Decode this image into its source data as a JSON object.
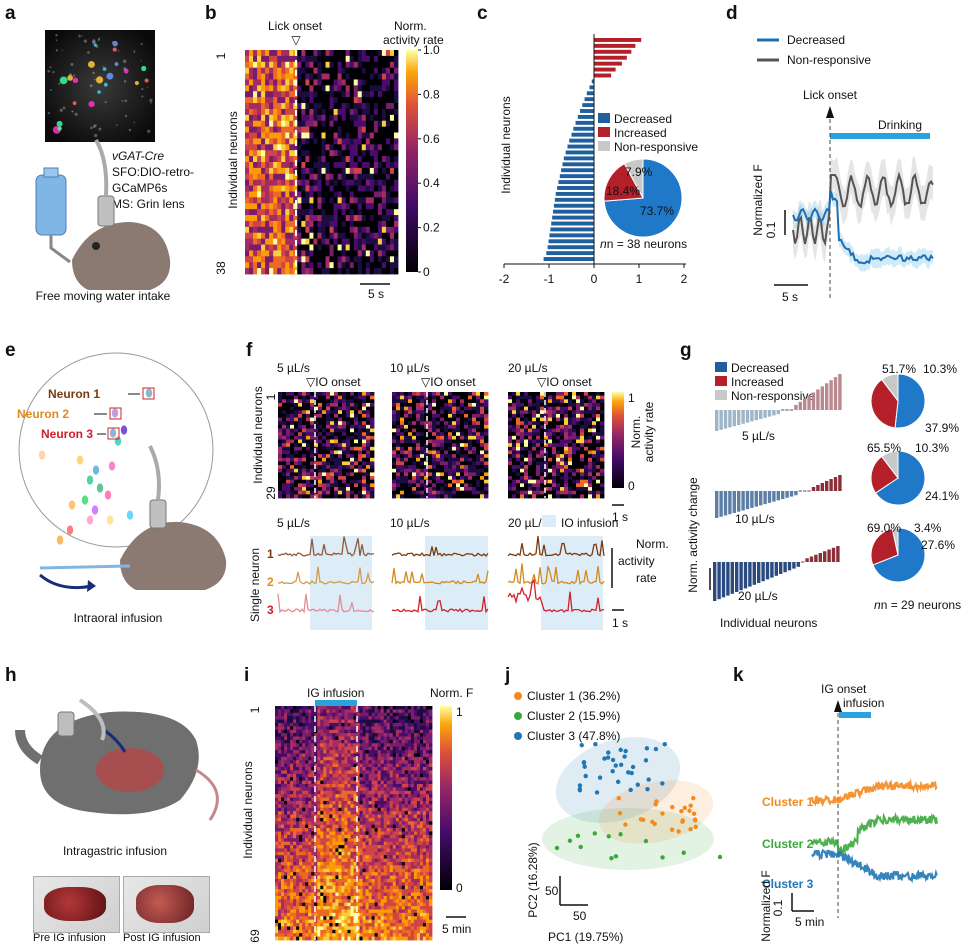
{
  "panel_letters": [
    "a",
    "b",
    "c",
    "d",
    "e",
    "f",
    "g",
    "h",
    "i",
    "j",
    "k"
  ],
  "a": {
    "genotype": "vGAT-Cre",
    "line2": "SFO:DIO-retro-",
    "line3": "GCaMP6s",
    "line4": "MS: Grin lens",
    "caption": "Free moving water intake"
  },
  "b": {
    "marker": "Lick onset",
    "cbar_title_1": "Norm.",
    "cbar_title_2": "activity rate",
    "cbar_ticks": [
      "1.0",
      "0.8",
      "0.6",
      "0.4",
      "0.2",
      "0"
    ],
    "ylabel": "Individual neurons",
    "row_first": "1",
    "row_last": "38",
    "scalebar": "5 s",
    "colors": {
      "low": "#0d0887",
      "mid": "#cc4778",
      "high": "#f0f921"
    }
  },
  "c": {
    "ylabel": "Individual neurons",
    "xticks": [
      "-2",
      "-1",
      "0",
      "1",
      "2"
    ],
    "legend": [
      "Decreased",
      "Increased",
      "Non-responsive"
    ],
    "pie_labels": [
      "73.7%",
      "18.4%",
      "7.9%"
    ],
    "n_label": "n = 38 neurons",
    "colors": {
      "decreased": "#1f5f9e",
      "increased": "#b3202a",
      "nonresp": "#c8c8c8",
      "pie_decreased": "#1f78c8"
    }
  },
  "chart_data": [
    {
      "panel": "c",
      "type": "bar",
      "title": "",
      "xlabel": "",
      "ylabel": "Individual neurons",
      "xlim": [
        -2,
        2
      ],
      "values": [
        1.05,
        0.92,
        0.83,
        0.73,
        0.62,
        0.48,
        0.38,
        -0.05,
        -0.1,
        -0.16,
        -0.21,
        -0.26,
        -0.31,
        -0.36,
        -0.41,
        -0.46,
        -0.5,
        -0.55,
        -0.59,
        -0.63,
        -0.67,
        -0.7,
        -0.73,
        -0.76,
        -0.79,
        -0.82,
        -0.85,
        -0.87,
        -0.89,
        -0.91,
        -0.93,
        -0.95,
        -0.97,
        -0.99,
        -1.01,
        -1.03,
        -1.06,
        -1.12
      ],
      "pie": {
        "Decreased": 73.7,
        "Increased": 18.4,
        "Non-responsive": 7.9
      }
    },
    {
      "panel": "g",
      "type": "pie",
      "series": [
        {
          "name": "5 µL/s",
          "Decreased": 51.7,
          "Increased": 37.9,
          "Non-responsive": 10.3
        },
        {
          "name": "10 µL/s",
          "Decreased": 65.5,
          "Increased": 24.1,
          "Non-responsive": 10.3
        },
        {
          "name": "20 µL/s",
          "Decreased": 69.0,
          "Increased": 27.6,
          "Non-responsive": 3.4
        }
      ]
    },
    {
      "panel": "j",
      "type": "scatter",
      "xlabel": "PC1 (19.75%)",
      "ylabel": "PC2 (16.28%)",
      "series": [
        {
          "name": "Cluster 1 (36.2%)"
        },
        {
          "name": "Cluster 2 (15.9%)"
        },
        {
          "name": "Cluster 3 (47.8%)"
        }
      ]
    }
  ],
  "d": {
    "legend": [
      "Decreased",
      "Non-responsive"
    ],
    "marker": "Lick onset",
    "drinking": "Drinking",
    "ylabel": "Normalized F",
    "yscale": "0.1",
    "scalebar": "5 s",
    "colors": {
      "decreased": "#1f6fb0",
      "nonresp": "#555555",
      "bar": "#29a3e0"
    }
  },
  "e": {
    "neurons": [
      "Neuron 1",
      "Neuron 2",
      "Neuron 3"
    ],
    "caption": "Intraoral infusion",
    "colors": {
      "n1": "#7a3b10",
      "n2": "#e08a1e",
      "n3": "#d0202a"
    }
  },
  "f": {
    "rates": [
      "5 µL/s",
      "10 µL/s",
      "20 µL/s"
    ],
    "marker": "IO onset",
    "ylabel": "Individual neurons",
    "row_first": "1",
    "row_last": "29",
    "cbar_title": [
      "Norm.",
      "activity rate"
    ],
    "cbar_ticks": [
      "1",
      "0"
    ],
    "scalebar_top": "1 s",
    "legend_infusion": "IO infusion",
    "single_ylabel": "Single neuron",
    "neuron_ids": [
      "1",
      "2",
      "3"
    ],
    "trace_scale": [
      "Norm.",
      "activity",
      "rate"
    ],
    "scalebar_bottom": "1 s"
  },
  "g": {
    "legend": [
      "Decreased",
      "Increased",
      "Non-responsive"
    ],
    "rates": [
      "5 µL/s",
      "10 µL/s",
      "20 µL/s"
    ],
    "ylabel": "Norm. activity change",
    "xlabel": "Individual neurons",
    "pie_labels": [
      [
        "51.7%",
        "10.3%",
        "37.9%"
      ],
      [
        "65.5%",
        "10.3%",
        "24.1%"
      ],
      [
        "69.0%",
        "3.4%",
        "27.6%"
      ]
    ],
    "n_label": "n = 29 neurons"
  },
  "h": {
    "caption": "Intragastric infusion",
    "photo_pre": "Pre IG infusion",
    "photo_post": "Post IG infusion"
  },
  "i": {
    "infusion": "IG infusion",
    "cbar_title": "Norm. F",
    "cbar_ticks": [
      "1",
      "0"
    ],
    "ylabel": "Individual neurons",
    "row_first": "1",
    "row_last": "69",
    "scalebar": "5 min"
  },
  "j": {
    "legend": [
      "Cluster 1 (36.2%)",
      "Cluster 2 (15.9%)",
      "Cluster 3 (47.8%)"
    ],
    "xlabel": "PC1 (19.75%)",
    "ylabel": "PC2 (16.28%)",
    "scale_x": "50",
    "scale_y": "50",
    "colors": {
      "c1": "#f28a1e",
      "c2": "#3aa83a",
      "c3": "#1f77b4"
    }
  },
  "k": {
    "onset": "IG onset",
    "infusion": "infusion",
    "clusters": [
      "Cluster 1",
      "Cluster 2",
      "Cluster 3"
    ],
    "ylabel": "Normalized F",
    "yscale": "0.1",
    "scalebar": "5 min"
  }
}
